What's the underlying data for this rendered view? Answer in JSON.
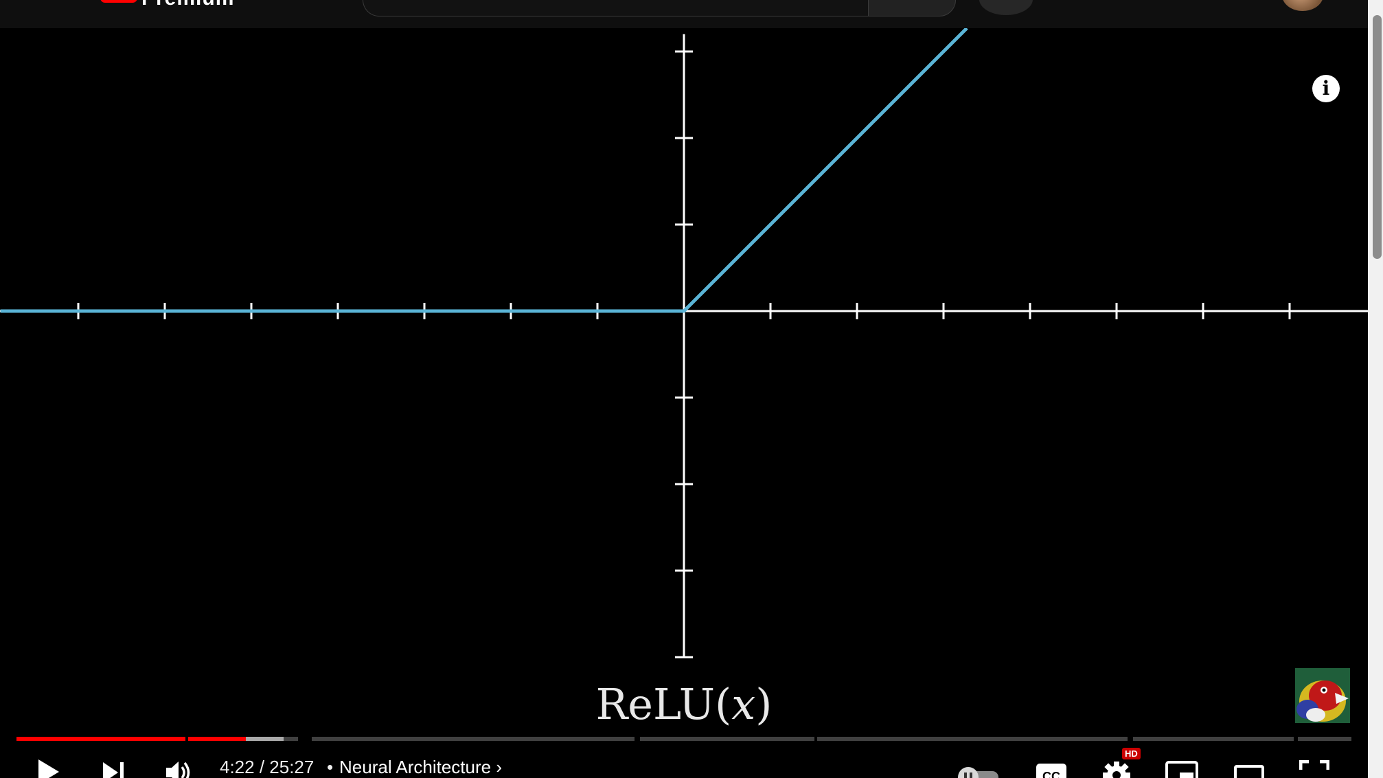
{
  "header": {
    "logo_text": "Premium"
  },
  "video": {
    "formula_label": "ReLU(",
    "formula_var": "x",
    "formula_close": ")",
    "info_icon": "i",
    "curve_color": "#5ab4d6",
    "axis_color": "#ffffff",
    "background": "#000000"
  },
  "plot": {
    "function": "relu",
    "x_ticks": [
      -7,
      -6,
      -5,
      -4,
      -3,
      -2,
      -1,
      1,
      2,
      3,
      4,
      5,
      6,
      7
    ],
    "y_ticks": [
      -4,
      -3,
      -2,
      -1,
      1,
      2,
      3
    ],
    "xlim": [
      -7.9,
      7.9
    ],
    "ylim": [
      -4.0,
      3.2
    ]
  },
  "player": {
    "current_time": "4:22",
    "duration": "25:27",
    "time_separator": " / ",
    "bullet": "•",
    "chapter_title": "Neural Architecture",
    "hd_badge": "HD",
    "progress_played_fraction": 0.1718,
    "progress_buffered_fraction": 0.2,
    "played_color": "#ff0000"
  },
  "controls": {
    "play_icon": "play-icon",
    "next_icon": "next-icon",
    "volume_icon": "volume-icon",
    "autoplay_icon": "autoplay-toggle-icon",
    "cc_icon": "cc-icon",
    "settings_icon": "gear-icon",
    "miniplayer_icon": "miniplayer-icon",
    "theater_icon": "theater-icon",
    "fullscreen_icon": "fullscreen-icon"
  }
}
